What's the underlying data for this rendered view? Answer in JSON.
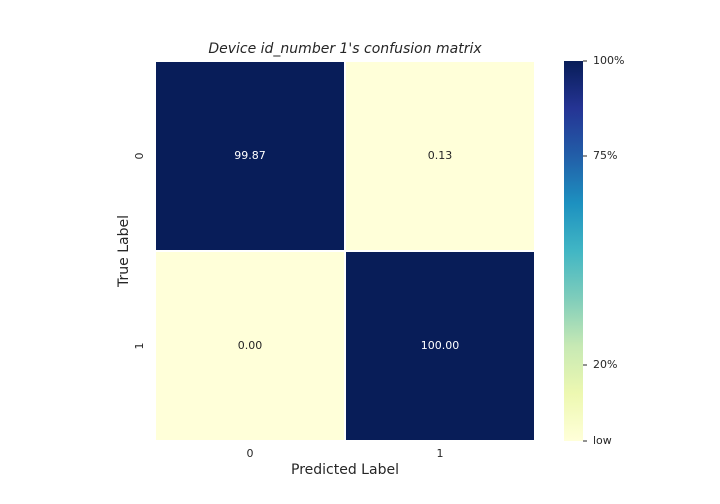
{
  "chart_data": {
    "type": "heatmap",
    "title": "Device id_number 1's confusion matrix",
    "xlabel": "Predicted Label",
    "ylabel": "True Label",
    "x_categories": [
      "0",
      "1"
    ],
    "y_categories": [
      "0",
      "1"
    ],
    "values": [
      [
        99.87,
        0.13
      ],
      [
        0.0,
        100.0
      ]
    ],
    "value_labels": [
      [
        "99.87",
        "0.13"
      ],
      [
        "0.00",
        "100.00"
      ]
    ],
    "colormap": "YlGnBu",
    "clim": [
      0,
      100
    ],
    "cticks": [
      {
        "value": 100,
        "label": "100%"
      },
      {
        "value": 75,
        "label": "75%"
      },
      {
        "value": 20,
        "label": "20%"
      },
      {
        "value": 0,
        "label": "low"
      }
    ]
  }
}
